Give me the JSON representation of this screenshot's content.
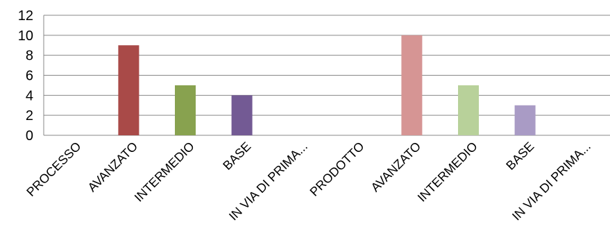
{
  "chart_data": {
    "type": "bar",
    "title": "",
    "xlabel": "",
    "ylabel": "",
    "ylim": [
      0,
      12
    ],
    "yticks": [
      0,
      2,
      4,
      6,
      8,
      10,
      12
    ],
    "grid": true,
    "legend": "none",
    "categories": [
      "PROCESSO",
      "AVANZATO",
      "INTERMEDIO",
      "BASE",
      "IN VIA DI PRIMA...",
      "PRODOTTO",
      "AVANZATO",
      "INTERMEDIO",
      "BASE",
      "IN VIA DI PRIMA..."
    ],
    "values": [
      0,
      9,
      5,
      4,
      0,
      0,
      10,
      5,
      3,
      0
    ],
    "colors": [
      "#A94A48",
      "#A94A48",
      "#88A24F",
      "#735A94",
      "#735A94",
      "#D69594",
      "#D69594",
      "#B8D19A",
      "#A99BC5",
      "#A99BC5"
    ]
  }
}
